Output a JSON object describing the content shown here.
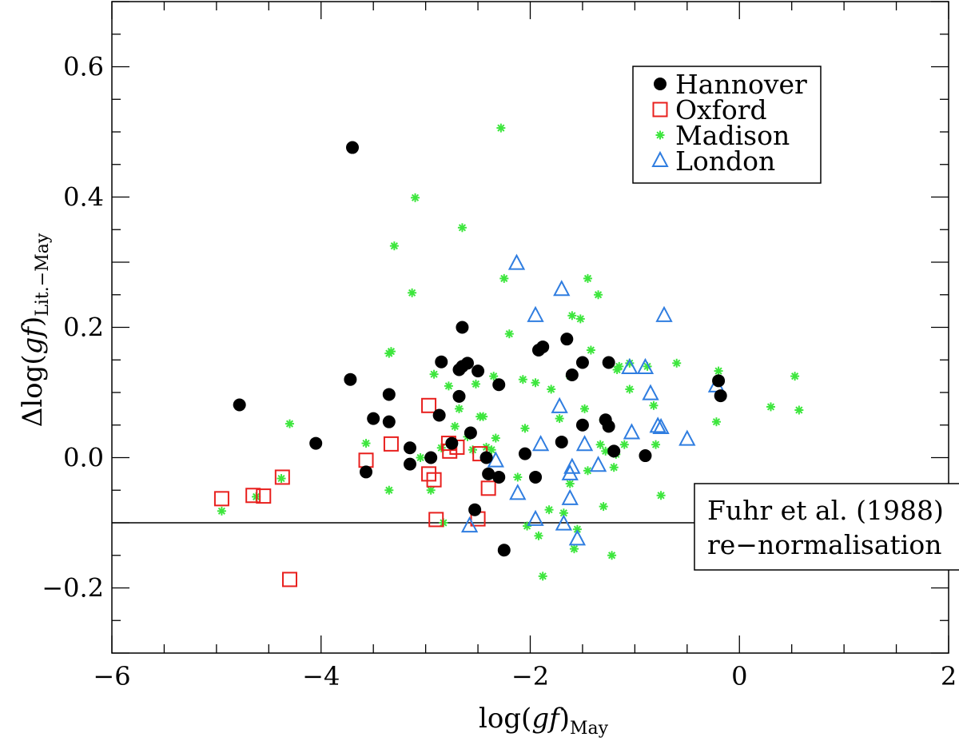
{
  "chart_data": {
    "type": "scatter",
    "title": "",
    "xlabel": "log(gf)May",
    "xlabel_main": "log(",
    "xlabel_italic": "gf",
    "xlabel_close": ")",
    "xlabel_sub": "May",
    "ylabel": "Δlog(gf)Lit.−May",
    "ylabel_main": "Δlog(",
    "ylabel_italic": "gf",
    "ylabel_close": ")",
    "ylabel_sub": "Lit.−May",
    "xlim": [
      -6,
      2
    ],
    "ylim": [
      -0.3,
      0.7
    ],
    "xticks": [
      -6,
      -4,
      -2,
      0,
      2
    ],
    "xtick_labels": [
      "−6",
      "−4",
      "−2",
      "0",
      "2"
    ],
    "yticks": [
      -0.2,
      0.0,
      0.2,
      0.4,
      0.6
    ],
    "ytick_labels": [
      "−0.2",
      "0.0",
      "0.2",
      "0.4",
      "0.6"
    ],
    "x_minor_step": 0.5,
    "y_minor_step": 0.05,
    "legend_position": "top-right",
    "colors": {
      "hannover": "#000000",
      "oxford": "#e8201e",
      "madison": "#3de63d",
      "london": "#2f7de0",
      "axes": "#000000"
    },
    "series": [
      {
        "name": "Hannover",
        "key": "hannover",
        "marker": "filled-circle",
        "points": [
          [
            -4.78,
            0.081
          ],
          [
            -4.05,
            0.022
          ],
          [
            -3.7,
            0.476
          ],
          [
            -3.72,
            0.12
          ],
          [
            -3.5,
            0.06
          ],
          [
            -3.57,
            -0.022
          ],
          [
            -3.35,
            0.097
          ],
          [
            -3.35,
            0.055
          ],
          [
            -3.15,
            0.015
          ],
          [
            -3.15,
            -0.01
          ],
          [
            -2.95,
            0.0
          ],
          [
            -2.85,
            0.147
          ],
          [
            -2.87,
            0.065
          ],
          [
            -2.75,
            0.022
          ],
          [
            -2.68,
            0.135
          ],
          [
            -2.65,
            0.14
          ],
          [
            -2.6,
            0.145
          ],
          [
            -2.68,
            0.094
          ],
          [
            -2.65,
            0.2
          ],
          [
            -2.5,
            0.133
          ],
          [
            -2.57,
            0.038
          ],
          [
            -2.42,
            0.0
          ],
          [
            -2.4,
            -0.025
          ],
          [
            -2.3,
            -0.03
          ],
          [
            -2.3,
            0.112
          ],
          [
            -2.53,
            -0.08
          ],
          [
            -2.25,
            -0.142
          ],
          [
            -2.05,
            0.006
          ],
          [
            -1.95,
            -0.03
          ],
          [
            -1.92,
            0.165
          ],
          [
            -1.88,
            0.17
          ],
          [
            -1.7,
            0.024
          ],
          [
            -1.65,
            0.182
          ],
          [
            -1.6,
            0.127
          ],
          [
            -1.5,
            0.146
          ],
          [
            -1.5,
            0.05
          ],
          [
            -1.28,
            0.058
          ],
          [
            -1.25,
            0.146
          ],
          [
            -1.25,
            0.048
          ],
          [
            -1.2,
            0.01
          ],
          [
            -0.9,
            0.003
          ],
          [
            -0.2,
            0.118
          ],
          [
            -0.18,
            0.095
          ]
        ]
      },
      {
        "name": "Oxford",
        "key": "oxford",
        "marker": "open-square",
        "points": [
          [
            -4.95,
            -0.063
          ],
          [
            -4.65,
            -0.058
          ],
          [
            -4.55,
            -0.059
          ],
          [
            -4.37,
            -0.03
          ],
          [
            -4.3,
            -0.187
          ],
          [
            -3.57,
            -0.004
          ],
          [
            -3.33,
            0.021
          ],
          [
            -2.97,
            0.08
          ],
          [
            -2.97,
            -0.025
          ],
          [
            -2.92,
            -0.034
          ],
          [
            -2.9,
            -0.095
          ],
          [
            -2.78,
            0.022
          ],
          [
            -2.77,
            0.01
          ],
          [
            -2.7,
            0.016
          ],
          [
            -2.5,
            -0.094
          ],
          [
            -2.48,
            0.006
          ],
          [
            -2.4,
            -0.047
          ]
        ]
      },
      {
        "name": "Madison",
        "key": "madison",
        "marker": "asterisk",
        "points": [
          [
            -4.95,
            -0.082
          ],
          [
            -4.62,
            -0.06
          ],
          [
            -4.3,
            0.052
          ],
          [
            -4.38,
            -0.032
          ],
          [
            -3.57,
            0.022
          ],
          [
            -3.35,
            0.16
          ],
          [
            -3.33,
            0.163
          ],
          [
            -3.3,
            0.325
          ],
          [
            -3.35,
            -0.05
          ],
          [
            -3.13,
            0.253
          ],
          [
            -3.1,
            0.399
          ],
          [
            -3.05,
            0.0
          ],
          [
            -2.95,
            -0.05
          ],
          [
            -2.92,
            0.128
          ],
          [
            -2.88,
            0.067
          ],
          [
            -2.85,
            0.015
          ],
          [
            -2.83,
            -0.1
          ],
          [
            -2.78,
            0.11
          ],
          [
            -2.72,
            0.048
          ],
          [
            -2.68,
            0.075
          ],
          [
            -2.65,
            0.353
          ],
          [
            -2.6,
            0.032
          ],
          [
            -2.55,
            0.012
          ],
          [
            -2.52,
            0.113
          ],
          [
            -2.48,
            0.063
          ],
          [
            -2.45,
            0.063
          ],
          [
            -2.42,
            0.016
          ],
          [
            -2.37,
            0.012
          ],
          [
            -2.35,
            0.125
          ],
          [
            -2.33,
            0.03
          ],
          [
            -2.28,
            0.506
          ],
          [
            -2.25,
            0.275
          ],
          [
            -2.2,
            0.19
          ],
          [
            -2.12,
            -0.03
          ],
          [
            -2.07,
            0.12
          ],
          [
            -2.05,
            0.045
          ],
          [
            -2.03,
            -0.105
          ],
          [
            -1.95,
            0.115
          ],
          [
            -1.92,
            -0.12
          ],
          [
            -1.88,
            -0.182
          ],
          [
            -1.82,
            -0.08
          ],
          [
            -1.8,
            0.105
          ],
          [
            -1.72,
            0.06
          ],
          [
            -1.68,
            -0.085
          ],
          [
            -1.62,
            0.125
          ],
          [
            -1.6,
            0.218
          ],
          [
            -1.62,
            -0.04
          ],
          [
            -1.58,
            -0.14
          ],
          [
            -1.55,
            -0.11
          ],
          [
            -1.52,
            0.213
          ],
          [
            -1.48,
            0.075
          ],
          [
            -1.45,
            0.275
          ],
          [
            -1.42,
            0.165
          ],
          [
            -1.45,
            -0.02
          ],
          [
            -1.35,
            0.25
          ],
          [
            -1.33,
            0.02
          ],
          [
            -1.3,
            0.058
          ],
          [
            -1.28,
            0.01
          ],
          [
            -1.3,
            -0.075
          ],
          [
            -1.22,
            -0.15
          ],
          [
            -1.2,
            -0.015
          ],
          [
            -1.18,
            0.005
          ],
          [
            -1.17,
            0.135
          ],
          [
            -1.15,
            0.14
          ],
          [
            -1.1,
            0.02
          ],
          [
            -1.05,
            0.105
          ],
          [
            -1.05,
            0.145
          ],
          [
            -0.88,
            0.14
          ],
          [
            -0.82,
            0.08
          ],
          [
            -0.8,
            0.02
          ],
          [
            -0.75,
            -0.058
          ],
          [
            -0.6,
            0.145
          ],
          [
            -0.22,
            0.055
          ],
          [
            -0.2,
            0.133
          ],
          [
            0.3,
            0.078
          ],
          [
            0.53,
            0.125
          ],
          [
            0.57,
            0.073
          ]
        ]
      },
      {
        "name": "London",
        "key": "london",
        "marker": "open-triangle",
        "points": [
          [
            -2.58,
            -0.105
          ],
          [
            -2.33,
            -0.005
          ],
          [
            -2.13,
            0.298
          ],
          [
            -2.12,
            -0.055
          ],
          [
            -1.95,
            0.218
          ],
          [
            -1.9,
            0.02
          ],
          [
            -1.95,
            -0.095
          ],
          [
            -1.7,
            0.258
          ],
          [
            -1.72,
            0.078
          ],
          [
            -1.68,
            -0.102
          ],
          [
            -1.62,
            -0.025
          ],
          [
            -1.6,
            -0.015
          ],
          [
            -1.62,
            -0.063
          ],
          [
            -1.55,
            -0.125
          ],
          [
            -1.48,
            0.02
          ],
          [
            -1.35,
            -0.012
          ],
          [
            -1.05,
            0.138
          ],
          [
            -1.03,
            0.038
          ],
          [
            -0.9,
            0.138
          ],
          [
            -0.85,
            0.098
          ],
          [
            -0.78,
            0.048
          ],
          [
            -0.75,
            0.046
          ],
          [
            -0.72,
            0.218
          ],
          [
            -0.5,
            0.028
          ],
          [
            -0.22,
            0.11
          ]
        ]
      }
    ],
    "reference_line": {
      "label_line1": "Fuhr et al. (1988)",
      "label_line2": "re−normalisation",
      "y": -0.1,
      "x_end": -0.43
    }
  }
}
